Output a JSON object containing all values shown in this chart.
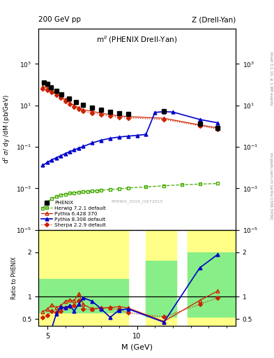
{
  "title_left": "200 GeV pp",
  "title_right": "Z (Drell-Yan)",
  "plot_title": "m$^{ll}$ (PHENIX Drell-Yan)",
  "xlabel": "M (GeV)",
  "ylabel_main": "d$^2$ $\\sigma$/ dy /dM (pb/GeV)",
  "ylabel_ratio": "Ratio to PHENIX",
  "right_label_top": "Rivet 3.1.10, ≥ 1.9M events",
  "right_label_bot": "mcplots.cern.ch [arXiv:1306.3436]",
  "watermark": "PHENIX_2019_I1672015",
  "phenix_x": [
    4.8,
    5.0,
    5.2,
    5.5,
    5.8,
    6.2,
    6.6,
    7.0,
    7.5,
    8.0,
    8.5,
    9.0,
    9.5,
    11.5,
    13.5,
    14.5
  ],
  "phenix_y": [
    130,
    105,
    75,
    50,
    35,
    22,
    15,
    11,
    7.5,
    6.0,
    5.0,
    4.2,
    3.8,
    5.2,
    1.3,
    0.8
  ],
  "herwig_x": [
    4.75,
    5.0,
    5.25,
    5.5,
    5.75,
    6.0,
    6.25,
    6.5,
    6.75,
    7.0,
    7.25,
    7.5,
    7.75,
    8.0,
    8.5,
    9.0,
    9.5,
    10.5,
    11.5,
    12.5,
    13.5,
    14.5
  ],
  "herwig_y": [
    0.00011,
    0.00022,
    0.00032,
    0.0004,
    0.00048,
    0.00053,
    0.00058,
    0.00061,
    0.00065,
    0.00068,
    0.00071,
    0.00074,
    0.00078,
    0.00082,
    0.00088,
    0.00095,
    0.00105,
    0.00118,
    0.00135,
    0.0015,
    0.00162,
    0.00172
  ],
  "pythia6_x": [
    4.75,
    5.0,
    5.25,
    5.5,
    5.75,
    6.0,
    6.25,
    6.5,
    6.75,
    7.0,
    7.5,
    8.0,
    8.5,
    9.0,
    9.5,
    11.5,
    13.5,
    14.5
  ],
  "pythia6_y": [
    80,
    70,
    52,
    37,
    27,
    19,
    13.5,
    10,
    7.8,
    6.2,
    5.2,
    4.2,
    3.6,
    3.1,
    2.9,
    2.4,
    1.15,
    0.82
  ],
  "pythia8_x": [
    4.75,
    5.0,
    5.25,
    5.5,
    5.75,
    6.0,
    6.25,
    6.5,
    6.75,
    7.0,
    7.5,
    8.0,
    8.5,
    9.0,
    9.5,
    10.0,
    10.5,
    11.0,
    11.5,
    12.0,
    13.5,
    14.5
  ],
  "pythia8_y": [
    0.013,
    0.018,
    0.024,
    0.03,
    0.038,
    0.048,
    0.06,
    0.072,
    0.088,
    0.105,
    0.155,
    0.21,
    0.26,
    0.3,
    0.33,
    0.36,
    0.4,
    4.6,
    5.0,
    4.8,
    2.1,
    1.45
  ],
  "sherpa_x": [
    4.75,
    5.0,
    5.25,
    5.5,
    5.75,
    6.0,
    6.25,
    6.5,
    6.75,
    7.0,
    7.5,
    8.0,
    8.5,
    9.0,
    9.5,
    11.5,
    13.5,
    14.5
  ],
  "sherpa_y": [
    62,
    55,
    44,
    31,
    23,
    16,
    11.5,
    8.5,
    6.8,
    5.2,
    4.3,
    3.6,
    3.0,
    2.7,
    2.5,
    2.1,
    1.05,
    0.72
  ],
  "ratio_pythia6_x": [
    4.75,
    5.0,
    5.25,
    5.5,
    5.75,
    6.0,
    6.25,
    6.5,
    6.75,
    7.0,
    7.5,
    8.0,
    8.5,
    9.0,
    9.5,
    11.5,
    13.5,
    14.5
  ],
  "ratio_pythia6_y": [
    0.67,
    0.72,
    0.82,
    0.76,
    0.8,
    0.9,
    0.93,
    0.91,
    1.07,
    0.83,
    0.73,
    0.75,
    0.76,
    0.78,
    0.75,
    0.45,
    0.92,
    1.13
  ],
  "ratio_pythia8_x": [
    4.75,
    5.0,
    5.25,
    5.5,
    5.75,
    6.0,
    6.25,
    6.5,
    6.75,
    7.0,
    7.5,
    8.0,
    8.5,
    9.0,
    9.5,
    11.5,
    13.5,
    14.5
  ],
  "ratio_pythia8_y": [
    0.11,
    0.18,
    0.3,
    0.62,
    0.78,
    0.75,
    0.8,
    0.68,
    0.84,
    0.98,
    0.9,
    0.73,
    0.54,
    0.7,
    0.73,
    0.43,
    1.65,
    1.95
  ],
  "ratio_sherpa_x": [
    4.75,
    5.0,
    5.25,
    5.5,
    5.75,
    6.0,
    6.25,
    6.5,
    6.75,
    7.0,
    7.5,
    8.0,
    8.5,
    9.0,
    9.5,
    11.5,
    13.5,
    14.5
  ],
  "ratio_sherpa_y": [
    0.54,
    0.58,
    0.68,
    0.64,
    0.68,
    0.76,
    0.79,
    0.81,
    0.92,
    0.72,
    0.72,
    0.74,
    0.75,
    0.71,
    0.64,
    0.55,
    0.83,
    0.98
  ],
  "band1_x1": 4.5,
  "band1_x2": 9.5,
  "band1_yellow_y1": 0.35,
  "band1_yellow_y2": 2.5,
  "band1_green_y1": 0.65,
  "band1_green_y2": 1.4,
  "band2_x1": 10.5,
  "band2_x2": 12.2,
  "band2_yellow_y1": 0.35,
  "band2_yellow_y2": 2.5,
  "band2_green_y1": 0.55,
  "band2_green_y2": 1.8,
  "band3_x1": 12.8,
  "band3_x2": 15.5,
  "band3_yellow_y1": 0.35,
  "band3_yellow_y2": 2.5,
  "band3_green_y1": 0.55,
  "band3_green_y2": 2.0,
  "color_phenix": "black",
  "color_herwig": "#44aa00",
  "color_pythia6": "#cc2200",
  "color_pythia8": "#0000cc",
  "color_sherpa": "#cc2200",
  "color_yellow": "#ffff88",
  "color_green": "#88ee88",
  "xlim": [
    4.5,
    15.5
  ],
  "ylim_main": [
    1e-05,
    50000.0
  ],
  "ylim_ratio": [
    0.35,
    2.5
  ]
}
